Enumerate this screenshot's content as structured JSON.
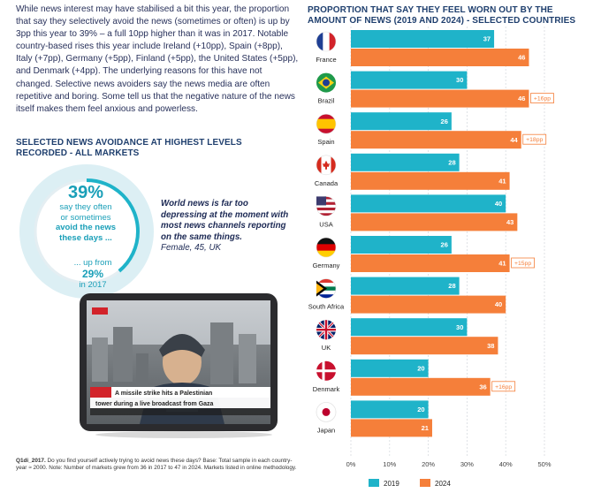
{
  "intro": "While news interest may have stabilised a bit this year, the proportion that say they selectively avoid the news (sometimes or often) is up by 3pp this year to 39% – a full 10pp higher than it was in 2017. Notable country-based rises this year include Ireland (+10pp), Spain (+8pp), Italy (+7pp), Germany (+5pp), Finland (+5pp), the United States (+5pp), and Denmark (+4pp). The underlying reasons for this have not changed. Selective news avoiders say the news media are often repetitive and boring. Some tell us that the negative nature of the news itself makes them feel anxious and powerless.",
  "avoidance": {
    "title": "SELECTED NEWS AVOIDANCE AT HIGHEST LEVELS RECORDED - ALL MARKETS",
    "value": "39%",
    "line1": "say they often",
    "line2": "or sometimes",
    "line3": "avoid the news",
    "line4": "these days ...",
    "upfrom_prefix": "... up from",
    "upfrom_value": "29%",
    "upfrom_suffix": "in 2017",
    "ring_fraction": 0.39
  },
  "quote": {
    "text": "World news is far too depressing at the moment with most news channels reporting on the same things.",
    "attribution": "Female, 45, UK"
  },
  "tablet": {
    "headline": "A missile strike hits a Palestinian tower during a live broadcast from Gaza"
  },
  "footnote": {
    "label": "Q1di_2017.",
    "text": " Do you find yourself actively trying to avoid news these days? Base: Total sample in each country-year ≈ 2000. Note: Number of markets grew from 36 in 2017 to 47 in 2024. Markets listed in online methodology."
  },
  "chart_data": {
    "type": "bar",
    "orientation": "horizontal",
    "title": "PROPORTION THAT SAY THEY FEEL WORN OUT BY THE AMOUNT OF NEWS (2019 AND 2024) - SELECTED COUNTRIES",
    "categories": [
      "France",
      "Brazil",
      "Spain",
      "Canada",
      "USA",
      "Germany",
      "South Africa",
      "UK",
      "Denmark",
      "Japan"
    ],
    "series": [
      {
        "name": "2019",
        "color": "#1fb3c9",
        "values": [
          37,
          30,
          26,
          28,
          40,
          26,
          28,
          30,
          20,
          20
        ]
      },
      {
        "name": "2024",
        "color": "#f57f3a",
        "values": [
          46,
          46,
          44,
          41,
          43,
          41,
          40,
          38,
          36,
          21
        ]
      }
    ],
    "annotations": [
      "",
      "+16pp",
      "+18pp",
      "",
      "",
      "+15pp",
      "",
      "",
      "+16pp",
      ""
    ],
    "xlim": [
      0,
      50
    ],
    "xticks": [
      "0%",
      "10%",
      "20%",
      "30%",
      "40%",
      "50%"
    ],
    "legend": "bottom",
    "grid": true
  },
  "colors": {
    "teal": "#1fb3c9",
    "orange": "#f57f3a",
    "navy": "#1f3f6e"
  }
}
